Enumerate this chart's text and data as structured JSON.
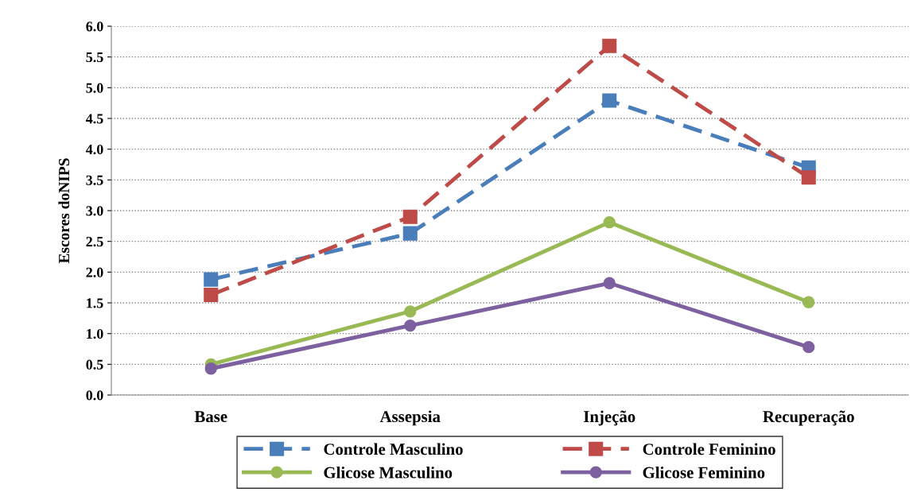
{
  "chart_data": {
    "type": "line",
    "ylabel": "Escores doNIPS",
    "categories": [
      "Base",
      "Assepsia",
      "Injeção",
      "Recuperação"
    ],
    "ylim": [
      0,
      6
    ],
    "yticks": [
      {
        "value": 0,
        "label": "0.0"
      },
      {
        "value": 0.5,
        "label": "0.5"
      },
      {
        "value": 1,
        "label": "1.0"
      },
      {
        "value": 1.5,
        "label": "1.5"
      },
      {
        "value": 2,
        "label": "2.0"
      },
      {
        "value": 2.5,
        "label": "2.5"
      },
      {
        "value": 3,
        "label": "3.0"
      },
      {
        "value": 3.5,
        "label": "3.5"
      },
      {
        "value": 4,
        "label": "4.0"
      },
      {
        "value": 4.5,
        "label": "4.5"
      },
      {
        "value": 5,
        "label": "5.0"
      },
      {
        "value": 5.5,
        "label": "5.5"
      },
      {
        "value": 6,
        "label": "6.0"
      }
    ],
    "grid": "y",
    "legend": "bottom",
    "series": [
      {
        "name": "Controle Masculino",
        "color": "#4a7ebb",
        "marker": "square",
        "line_style": "dashed",
        "values": [
          1.88,
          2.63,
          4.79,
          3.7
        ]
      },
      {
        "name": "Controle Feminino",
        "color": "#be4b48",
        "marker": "square",
        "line_style": "dashed",
        "values": [
          1.63,
          2.9,
          5.68,
          3.54
        ]
      },
      {
        "name": "Glicose Masculino",
        "color": "#98b954",
        "marker": "circle",
        "line_style": "solid",
        "values": [
          0.5,
          1.36,
          2.81,
          1.51
        ]
      },
      {
        "name": "Glicose Feminino",
        "color": "#7d60a0",
        "marker": "circle",
        "line_style": "solid",
        "values": [
          0.43,
          1.13,
          1.82,
          0.78
        ]
      }
    ]
  }
}
